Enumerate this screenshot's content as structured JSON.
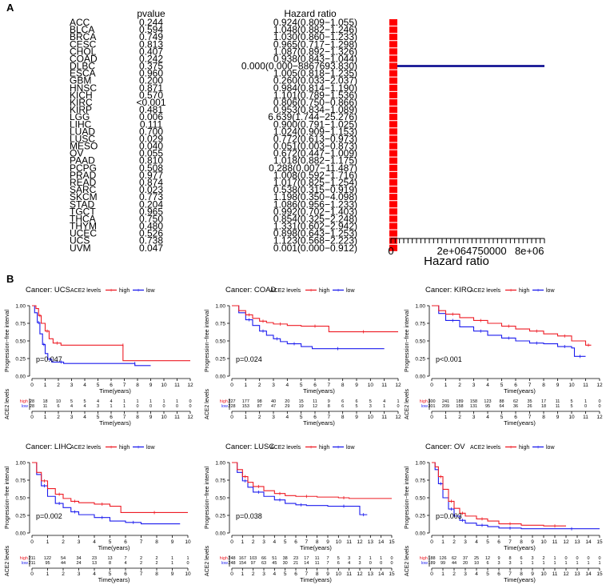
{
  "panel_a_label": "A",
  "panel_b_label": "B",
  "forest": {
    "pvalue_header": "pvalue",
    "hr_header": "Hazard ratio",
    "xlabel": "Hazard ratio",
    "ticks": [
      "0",
      "2e+06",
      "4750000",
      "8e+06"
    ],
    "tick_values": [
      0,
      2000000,
      4750000,
      8000000
    ],
    "xlim": [
      0,
      8867693.83
    ],
    "color_point": "#ff0000",
    "color_line": "#00008b",
    "rows": [
      {
        "cancer": "ACC",
        "p": "0.244",
        "hr_text": "0.924(0.809−1.055)",
        "hr": 0.924,
        "lo": 0.809,
        "hi": 1.055
      },
      {
        "cancer": "BLCA",
        "p": "0.594",
        "hr_text": "1.048(0.882−1.246)",
        "hr": 1.048,
        "lo": 0.882,
        "hi": 1.246
      },
      {
        "cancer": "BRCA",
        "p": "0.749",
        "hr_text": "1.030(0.860−1.233)",
        "hr": 1.03,
        "lo": 0.86,
        "hi": 1.233
      },
      {
        "cancer": "CESC",
        "p": "0.813",
        "hr_text": "0.965(0.717−1.298)",
        "hr": 0.965,
        "lo": 0.717,
        "hi": 1.298
      },
      {
        "cancer": "CHOL",
        "p": "0.407",
        "hr_text": "1.087(0.892−1.326)",
        "hr": 1.087,
        "lo": 0.892,
        "hi": 1.326
      },
      {
        "cancer": "COAD",
        "p": "0.242",
        "hr_text": "0.938(0.843−1.044)",
        "hr": 0.938,
        "lo": 0.843,
        "hi": 1.044
      },
      {
        "cancer": "DLBC",
        "p": "0.375",
        "hr_text": "0.000(0.000−8867693.830)",
        "hr": 0.0,
        "lo": 0.0,
        "hi": 8867693.83
      },
      {
        "cancer": "ESCA",
        "p": "0.960",
        "hr_text": "1.005(0.818−1.235)",
        "hr": 1.005,
        "lo": 0.818,
        "hi": 1.235
      },
      {
        "cancer": "GBM",
        "p": "0.200",
        "hr_text": "0.260(0.033−2.037)",
        "hr": 0.26,
        "lo": 0.033,
        "hi": 2.037
      },
      {
        "cancer": "HNSC",
        "p": "0.871",
        "hr_text": "0.984(0.814−1.190)",
        "hr": 0.984,
        "lo": 0.814,
        "hi": 1.19
      },
      {
        "cancer": "KICH",
        "p": "0.570",
        "hr_text": "1.101(0.789−1.536)",
        "hr": 1.101,
        "lo": 0.789,
        "hi": 1.536
      },
      {
        "cancer": "KIRC",
        "p": "<0.001",
        "hr_text": "0.806(0.750−0.866)",
        "hr": 0.806,
        "lo": 0.75,
        "hi": 0.866
      },
      {
        "cancer": "KIRP",
        "p": "0.481",
        "hr_text": "0.953(0.834−1.089)",
        "hr": 0.953,
        "lo": 0.834,
        "hi": 1.089
      },
      {
        "cancer": "LGG",
        "p": "0.006",
        "hr_text": "6.639(1.744−25.276)",
        "hr": 6.639,
        "lo": 1.744,
        "hi": 25.276
      },
      {
        "cancer": "LIHC",
        "p": "0.111",
        "hr_text": "0.900(0.791−1.025)",
        "hr": 0.9,
        "lo": 0.791,
        "hi": 1.025
      },
      {
        "cancer": "LUAD",
        "p": "0.700",
        "hr_text": "1.024(0.909−1.153)",
        "hr": 1.024,
        "lo": 0.909,
        "hi": 1.153
      },
      {
        "cancer": "LUSC",
        "p": "0.029",
        "hr_text": "0.772(0.613−0.973)",
        "hr": 0.772,
        "lo": 0.613,
        "hi": 0.973
      },
      {
        "cancer": "MESO",
        "p": "0.040",
        "hr_text": "0.051(0.003−0.873)",
        "hr": 0.051,
        "lo": 0.003,
        "hi": 0.873
      },
      {
        "cancer": "OV",
        "p": "0.055",
        "hr_text": "0.672(0.447−1.009)",
        "hr": 0.672,
        "lo": 0.447,
        "hi": 1.009
      },
      {
        "cancer": "PAAD",
        "p": "0.810",
        "hr_text": "1.018(0.882−1.175)",
        "hr": 1.018,
        "lo": 0.882,
        "hi": 1.175
      },
      {
        "cancer": "PCPG",
        "p": "0.508",
        "hr_text": "0.288(0.007−11.487)",
        "hr": 0.288,
        "lo": 0.007,
        "hi": 11.487
      },
      {
        "cancer": "PRAD",
        "p": "0.977",
        "hr_text": "1.008(0.592−1.716)",
        "hr": 1.008,
        "lo": 0.592,
        "hi": 1.716
      },
      {
        "cancer": "READ",
        "p": "0.874",
        "hr_text": "1.017(0.825−1.254)",
        "hr": 1.017,
        "lo": 0.825,
        "hi": 1.254
      },
      {
        "cancer": "SARC",
        "p": "0.023",
        "hr_text": "0.538(0.315−0.919)",
        "hr": 0.538,
        "lo": 0.315,
        "hi": 0.919
      },
      {
        "cancer": "SKCM",
        "p": "0.773",
        "hr_text": "1.198(0.350−4.098)",
        "hr": 1.198,
        "lo": 0.35,
        "hi": 4.098
      },
      {
        "cancer": "STAD",
        "p": "0.204",
        "hr_text": "1.086(0.956−1.233)",
        "hr": 1.086,
        "lo": 0.956,
        "hi": 1.233
      },
      {
        "cancer": "TGCT",
        "p": "0.965",
        "hr_text": "0.992(0.702−1.403)",
        "hr": 0.992,
        "lo": 0.702,
        "hi": 1.403
      },
      {
        "cancer": "THCA",
        "p": "0.750",
        "hr_text": "0.854(0.325−2.248)",
        "hr": 0.854,
        "lo": 0.325,
        "hi": 2.248
      },
      {
        "cancer": "THYM",
        "p": "0.480",
        "hr_text": "1.331(0.602−2.942)",
        "hr": 1.331,
        "lo": 0.602,
        "hi": 2.942
      },
      {
        "cancer": "UCEC",
        "p": "0.526",
        "hr_text": "0.898(0.643−1.253)",
        "hr": 0.898,
        "lo": 0.643,
        "hi": 1.253
      },
      {
        "cancer": "UCS",
        "p": "0.738",
        "hr_text": "1.123(0.568−2.223)",
        "hr": 1.123,
        "lo": 0.568,
        "hi": 2.223
      },
      {
        "cancer": "UVM",
        "p": "0.047",
        "hr_text": "0.001(0.000−0.912)",
        "hr": 0.001,
        "lo": 0.0,
        "hi": 0.912
      }
    ]
  },
  "km_common": {
    "legend_title": "ACE2 levels",
    "legend_high": "high",
    "legend_low": "low",
    "ylabel": "Progression−free interval",
    "xlabel": "Time(years)",
    "table_ylabel": "ACE2 levels",
    "table_high": "high",
    "table_low": "low",
    "y_ticks": [
      "0.00",
      "0.25",
      "0.50",
      "0.75",
      "1.00"
    ],
    "color_high": "#ee1c25",
    "color_low": "#1c1cee"
  },
  "chart_data": [
    {
      "type": "forest",
      "title": "",
      "xlabel": "Hazard ratio",
      "series": [
        {
          "name": "",
          "values": "see forest.rows"
        }
      ]
    },
    {
      "type": "line",
      "title": "Cancer: UCS",
      "xmax": 12,
      "pvalue": "p=0.047",
      "time_ticks": [
        "0",
        "1",
        "2",
        "3",
        "4",
        "5",
        "6",
        "7",
        "8",
        "9",
        "10",
        "11",
        "12"
      ],
      "risk_high": [
        "28",
        "18",
        "10",
        "5",
        "5",
        "4",
        "4",
        "1",
        "1",
        "1",
        "1",
        "1",
        "0"
      ],
      "risk_low": [
        "28",
        "11",
        "6",
        "4",
        "4",
        "3",
        "1",
        "1",
        "0",
        "0",
        "0",
        "0",
        "0"
      ],
      "high": [
        [
          0,
          1
        ],
        [
          0.3,
          0.96
        ],
        [
          0.5,
          0.86
        ],
        [
          0.7,
          0.75
        ],
        [
          1,
          0.64
        ],
        [
          1.3,
          0.53
        ],
        [
          1.6,
          0.47
        ],
        [
          2.2,
          0.44
        ],
        [
          6.9,
          0.44
        ],
        [
          6.9,
          0.22
        ],
        [
          12,
          0.22
        ]
      ],
      "low": [
        [
          0,
          1
        ],
        [
          0.2,
          0.9
        ],
        [
          0.4,
          0.76
        ],
        [
          0.6,
          0.6
        ],
        [
          0.8,
          0.45
        ],
        [
          1,
          0.32
        ],
        [
          1.2,
          0.24
        ],
        [
          1.5,
          0.2
        ],
        [
          2,
          0.2
        ],
        [
          2.4,
          0.18
        ],
        [
          7.8,
          0.18
        ],
        [
          7.8,
          0.15
        ],
        [
          9,
          0.15
        ]
      ]
    },
    {
      "type": "line",
      "title": "Cancer: COAD",
      "xmax": 12,
      "pvalue": "p=0.024",
      "time_ticks": [
        "0",
        "1",
        "2",
        "3",
        "4",
        "5",
        "6",
        "7",
        "8",
        "9",
        "10",
        "11",
        "12"
      ],
      "risk_high": [
        "227",
        "177",
        "98",
        "40",
        "20",
        "15",
        "11",
        "9",
        "6",
        "6",
        "5",
        "4",
        "1"
      ],
      "risk_low": [
        "228",
        "153",
        "87",
        "47",
        "29",
        "19",
        "12",
        "8",
        "6",
        "5",
        "3",
        "1",
        "0"
      ],
      "high": [
        [
          0,
          1
        ],
        [
          0.5,
          0.93
        ],
        [
          1,
          0.87
        ],
        [
          1.5,
          0.82
        ],
        [
          2,
          0.78
        ],
        [
          2.5,
          0.76
        ],
        [
          3,
          0.74
        ],
        [
          4,
          0.72
        ],
        [
          5,
          0.71
        ],
        [
          7,
          0.71
        ],
        [
          7,
          0.63
        ],
        [
          12,
          0.63
        ]
      ],
      "low": [
        [
          0,
          1
        ],
        [
          0.5,
          0.9
        ],
        [
          1,
          0.8
        ],
        [
          1.5,
          0.72
        ],
        [
          2,
          0.64
        ],
        [
          2.5,
          0.58
        ],
        [
          3,
          0.53
        ],
        [
          3.5,
          0.49
        ],
        [
          4,
          0.46
        ],
        [
          5,
          0.42
        ],
        [
          5.8,
          0.39
        ],
        [
          9.5,
          0.39
        ],
        [
          11,
          0.39
        ]
      ]
    },
    {
      "type": "line",
      "title": "Cancer: KIRC",
      "xmax": 12,
      "pvalue": "p<0.001",
      "time_ticks": [
        "0",
        "1",
        "2",
        "3",
        "4",
        "5",
        "6",
        "7",
        "8",
        "9",
        "10",
        "11",
        "12"
      ],
      "risk_high": [
        "300",
        "241",
        "189",
        "158",
        "123",
        "88",
        "62",
        "35",
        "17",
        "11",
        "5",
        "1",
        "0"
      ],
      "risk_low": [
        "301",
        "209",
        "158",
        "131",
        "95",
        "64",
        "36",
        "26",
        "18",
        "11",
        "5",
        "0",
        "0"
      ],
      "high": [
        [
          0,
          1
        ],
        [
          0.5,
          0.93
        ],
        [
          1,
          0.88
        ],
        [
          2,
          0.83
        ],
        [
          3,
          0.79
        ],
        [
          4,
          0.75
        ],
        [
          5,
          0.71
        ],
        [
          6,
          0.67
        ],
        [
          7,
          0.64
        ],
        [
          8,
          0.6
        ],
        [
          9,
          0.57
        ],
        [
          10,
          0.5
        ],
        [
          11,
          0.44
        ],
        [
          11.4,
          0.44
        ]
      ],
      "low": [
        [
          0,
          1
        ],
        [
          0.5,
          0.89
        ],
        [
          1,
          0.79
        ],
        [
          2,
          0.7
        ],
        [
          3,
          0.64
        ],
        [
          4,
          0.58
        ],
        [
          5,
          0.54
        ],
        [
          6,
          0.5
        ],
        [
          7,
          0.47
        ],
        [
          8,
          0.46
        ],
        [
          9,
          0.42
        ],
        [
          10,
          0.4
        ],
        [
          10.2,
          0.28
        ],
        [
          11,
          0.28
        ]
      ]
    },
    {
      "type": "line",
      "title": "Cancer: LIHC",
      "xmax": 10,
      "pvalue": "p=0.002",
      "time_ticks": [
        "0",
        "1",
        "2",
        "3",
        "4",
        "5",
        "6",
        "7",
        "8",
        "9",
        "10"
      ],
      "risk_high": [
        "211",
        "122",
        "54",
        "34",
        "23",
        "13",
        "7",
        "2",
        "2",
        "1",
        "1"
      ],
      "risk_low": [
        "211",
        "95",
        "44",
        "24",
        "13",
        "8",
        "4",
        "2",
        "2",
        "1",
        "0"
      ],
      "high": [
        [
          0,
          1
        ],
        [
          0.3,
          0.86
        ],
        [
          0.6,
          0.74
        ],
        [
          1,
          0.63
        ],
        [
          1.5,
          0.55
        ],
        [
          2,
          0.49
        ],
        [
          2.5,
          0.45
        ],
        [
          3,
          0.43
        ],
        [
          4,
          0.41
        ],
        [
          5,
          0.38
        ],
        [
          5.7,
          0.29
        ],
        [
          10,
          0.29
        ]
      ],
      "low": [
        [
          0,
          1
        ],
        [
          0.3,
          0.83
        ],
        [
          0.6,
          0.67
        ],
        [
          1,
          0.52
        ],
        [
          1.5,
          0.42
        ],
        [
          2,
          0.36
        ],
        [
          2.5,
          0.3
        ],
        [
          3,
          0.26
        ],
        [
          4,
          0.22
        ],
        [
          5,
          0.17
        ],
        [
          6,
          0.15
        ],
        [
          7,
          0.13
        ],
        [
          9.5,
          0.13
        ]
      ]
    },
    {
      "type": "line",
      "title": "Cancer: LUSC",
      "xmax": 15,
      "pvalue": "p=0.038",
      "time_ticks": [
        "0",
        "1",
        "2",
        "3",
        "4",
        "5",
        "6",
        "7",
        "8",
        "9",
        "10",
        "11",
        "12",
        "13",
        "14",
        "15"
      ],
      "risk_high": [
        "248",
        "167",
        "103",
        "66",
        "51",
        "38",
        "23",
        "17",
        "11",
        "7",
        "5",
        "3",
        "2",
        "1",
        "1",
        "0"
      ],
      "risk_low": [
        "248",
        "154",
        "97",
        "63",
        "45",
        "30",
        "21",
        "14",
        "11",
        "7",
        "6",
        "4",
        "3",
        "0",
        "0",
        "0"
      ],
      "high": [
        [
          0,
          1
        ],
        [
          0.5,
          0.9
        ],
        [
          1,
          0.8
        ],
        [
          1.5,
          0.72
        ],
        [
          2,
          0.66
        ],
        [
          3,
          0.6
        ],
        [
          4,
          0.56
        ],
        [
          5,
          0.53
        ],
        [
          6,
          0.52
        ],
        [
          8,
          0.51
        ],
        [
          10,
          0.5
        ],
        [
          11,
          0.49
        ],
        [
          15,
          0.49
        ]
      ],
      "low": [
        [
          0,
          1
        ],
        [
          0.5,
          0.86
        ],
        [
          1,
          0.74
        ],
        [
          1.5,
          0.65
        ],
        [
          2,
          0.58
        ],
        [
          3,
          0.52
        ],
        [
          4,
          0.47
        ],
        [
          5,
          0.42
        ],
        [
          6,
          0.4
        ],
        [
          7,
          0.39
        ],
        [
          9,
          0.38
        ],
        [
          12,
          0.38
        ],
        [
          12,
          0.26
        ],
        [
          12.7,
          0.26
        ]
      ]
    },
    {
      "type": "line",
      "title": "Cancer: OV",
      "xmax": 15,
      "pvalue": "p=0.003",
      "time_ticks": [
        "0",
        "1",
        "2",
        "3",
        "4",
        "5",
        "6",
        "7",
        "8",
        "9",
        "10",
        "11",
        "12",
        "13",
        "14",
        "15"
      ],
      "risk_high": [
        "188",
        "126",
        "62",
        "37",
        "25",
        "12",
        "9",
        "8",
        "6",
        "3",
        "2",
        "1",
        "0",
        "0",
        "0",
        "0"
      ],
      "risk_low": [
        "189",
        "99",
        "44",
        "20",
        "10",
        "6",
        "3",
        "3",
        "1",
        "1",
        "1",
        "1",
        "1",
        "1",
        "1",
        "1"
      ],
      "high": [
        [
          0,
          1
        ],
        [
          0.3,
          0.94
        ],
        [
          0.6,
          0.8
        ],
        [
          1,
          0.62
        ],
        [
          1.5,
          0.45
        ],
        [
          2,
          0.35
        ],
        [
          2.5,
          0.28
        ],
        [
          3,
          0.24
        ],
        [
          4,
          0.2
        ],
        [
          5,
          0.17
        ],
        [
          6,
          0.13
        ],
        [
          8,
          0.11
        ],
        [
          10,
          0.1
        ],
        [
          12,
          0.1
        ]
      ],
      "low": [
        [
          0,
          1
        ],
        [
          0.3,
          0.9
        ],
        [
          0.6,
          0.7
        ],
        [
          1,
          0.5
        ],
        [
          1.5,
          0.34
        ],
        [
          2,
          0.24
        ],
        [
          2.5,
          0.18
        ],
        [
          3,
          0.14
        ],
        [
          4,
          0.11
        ],
        [
          5,
          0.09
        ],
        [
          6,
          0.07
        ],
        [
          8,
          0.06
        ],
        [
          10,
          0.06
        ],
        [
          15,
          0.06
        ]
      ]
    }
  ]
}
